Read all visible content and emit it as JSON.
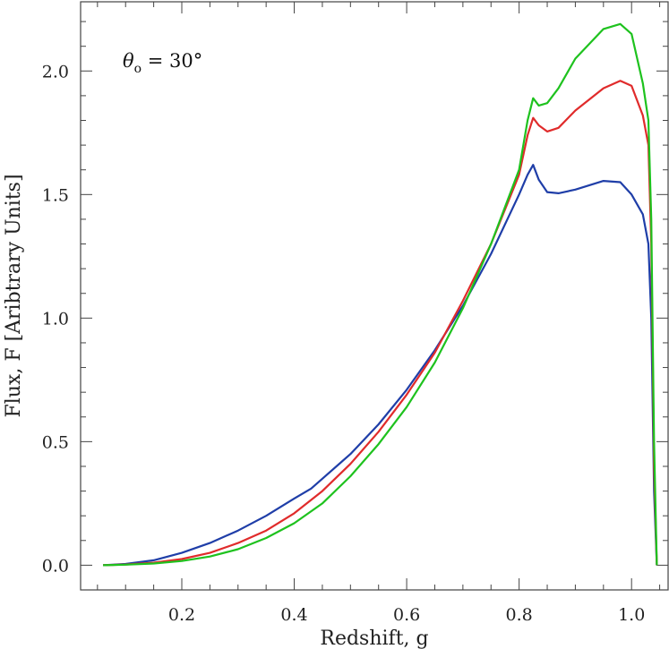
{
  "chart_data": {
    "type": "line",
    "title": "",
    "xlabel": "Redshift, g",
    "ylabel": "Flux, F [Aribtrary Units]",
    "xlim": [
      0.02,
      1.065
    ],
    "ylim": [
      -0.1,
      2.28
    ],
    "grid": false,
    "annotation": {
      "theta_symbol": "θ",
      "subscript": "o",
      "rest": " = 30°"
    },
    "x_ticks": [
      0.2,
      0.4,
      0.6,
      0.8,
      1.0
    ],
    "x_tick_labels": [
      "0.2",
      "0.4",
      "0.6",
      "0.8",
      "1.0"
    ],
    "y_ticks": [
      0.0,
      0.5,
      1.0,
      1.5,
      2.0
    ],
    "y_tick_labels": [
      "0.0",
      "0.5",
      "1.0",
      "1.5",
      "2.0"
    ],
    "series": [
      {
        "color": "#1f3ea8",
        "x": [
          0.06,
          0.1,
          0.15,
          0.2,
          0.25,
          0.3,
          0.35,
          0.4,
          0.43,
          0.45,
          0.5,
          0.55,
          0.6,
          0.65,
          0.7,
          0.75,
          0.8,
          0.815,
          0.825,
          0.835,
          0.85,
          0.87,
          0.9,
          0.95,
          0.98,
          1.0,
          1.02,
          1.03,
          1.035,
          1.04,
          1.045
        ],
        "y": [
          0.0,
          0.005,
          0.02,
          0.05,
          0.09,
          0.14,
          0.2,
          0.27,
          0.31,
          0.35,
          0.45,
          0.57,
          0.71,
          0.87,
          1.05,
          1.26,
          1.5,
          1.58,
          1.62,
          1.56,
          1.51,
          1.505,
          1.52,
          1.555,
          1.55,
          1.5,
          1.42,
          1.3,
          1.0,
          0.3,
          0.0
        ]
      },
      {
        "color": "#e02b2b",
        "x": [
          0.06,
          0.1,
          0.15,
          0.2,
          0.25,
          0.3,
          0.35,
          0.4,
          0.45,
          0.5,
          0.55,
          0.6,
          0.65,
          0.7,
          0.75,
          0.8,
          0.815,
          0.825,
          0.835,
          0.85,
          0.87,
          0.9,
          0.95,
          0.98,
          1.0,
          1.02,
          1.03,
          1.035,
          1.04,
          1.045
        ],
        "y": [
          0.0,
          0.003,
          0.01,
          0.025,
          0.05,
          0.09,
          0.14,
          0.21,
          0.3,
          0.41,
          0.54,
          0.69,
          0.86,
          1.07,
          1.3,
          1.58,
          1.74,
          1.81,
          1.78,
          1.755,
          1.77,
          1.84,
          1.93,
          1.96,
          1.94,
          1.82,
          1.7,
          1.3,
          0.4,
          0.0
        ]
      },
      {
        "color": "#1ec21e",
        "x": [
          0.06,
          0.1,
          0.15,
          0.2,
          0.25,
          0.3,
          0.35,
          0.4,
          0.45,
          0.5,
          0.55,
          0.6,
          0.65,
          0.7,
          0.75,
          0.8,
          0.815,
          0.825,
          0.835,
          0.85,
          0.87,
          0.9,
          0.95,
          0.98,
          1.0,
          1.02,
          1.03,
          1.035,
          1.04,
          1.045
        ],
        "y": [
          0.0,
          0.002,
          0.007,
          0.017,
          0.035,
          0.065,
          0.11,
          0.17,
          0.25,
          0.36,
          0.49,
          0.64,
          0.82,
          1.04,
          1.3,
          1.6,
          1.8,
          1.89,
          1.86,
          1.87,
          1.93,
          2.05,
          2.17,
          2.19,
          2.15,
          1.95,
          1.8,
          1.4,
          0.5,
          0.0
        ]
      }
    ]
  }
}
